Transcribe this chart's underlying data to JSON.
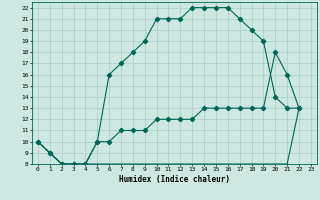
{
  "xlabel": "Humidex (Indice chaleur)",
  "background_color": "#cce8e0",
  "line_color": "#006655",
  "grid_color": "#aacccc",
  "xlim": [
    -0.5,
    23.5
  ],
  "ylim": [
    8,
    22.5
  ],
  "xtick_labels": [
    "0",
    "1",
    "2",
    "3",
    "4",
    "5",
    "6",
    "7",
    "8",
    "9",
    "10",
    "11",
    "12",
    "13",
    "14",
    "15",
    "16",
    "17",
    "18",
    "19",
    "20",
    "21",
    "22",
    "23"
  ],
  "xtick_vals": [
    0,
    1,
    2,
    3,
    4,
    5,
    6,
    7,
    8,
    9,
    10,
    11,
    12,
    13,
    14,
    15,
    16,
    17,
    18,
    19,
    20,
    21,
    22,
    23
  ],
  "ytick_vals": [
    8,
    9,
    10,
    11,
    12,
    13,
    14,
    15,
    16,
    17,
    18,
    19,
    20,
    21,
    22
  ],
  "curve1_x": [
    0,
    1,
    2,
    3,
    4,
    5,
    6,
    7,
    8,
    9,
    10,
    11,
    12,
    13,
    14,
    15,
    16,
    17,
    18,
    19,
    20,
    21,
    22
  ],
  "curve1_y": [
    10,
    9,
    8,
    8,
    8,
    10,
    16,
    17,
    18,
    19,
    21,
    21,
    21,
    22,
    22,
    22,
    22,
    21,
    20,
    19,
    14,
    13,
    13
  ],
  "curve2_x": [
    0,
    1,
    2,
    3,
    4,
    5,
    6,
    7,
    8,
    9,
    10,
    11,
    12,
    13,
    14,
    15,
    16,
    17,
    18,
    19,
    20,
    21,
    22
  ],
  "curve2_y": [
    10,
    9,
    8,
    8,
    8,
    10,
    10,
    11,
    11,
    11,
    12,
    12,
    12,
    12,
    13,
    13,
    13,
    13,
    13,
    13,
    18,
    16,
    13
  ],
  "curve3_x": [
    0,
    1,
    2,
    3,
    4,
    5,
    6,
    7,
    8,
    9,
    10,
    11,
    12,
    13,
    14,
    15,
    16,
    17,
    18,
    19,
    20,
    21,
    22
  ],
  "curve3_y": [
    10,
    9,
    8,
    8,
    8,
    8,
    8,
    8,
    8,
    8,
    8,
    8,
    8,
    8,
    8,
    8,
    8,
    8,
    8,
    8,
    8,
    8,
    13
  ]
}
